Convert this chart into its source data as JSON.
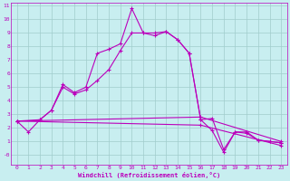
{
  "xlabel": "Windchill (Refroidissement éolien,°C)",
  "xlim": [
    -0.5,
    23.5
  ],
  "ylim": [
    -0.7,
    11.2
  ],
  "yticks": [
    0,
    1,
    2,
    3,
    4,
    5,
    6,
    7,
    8,
    9,
    10,
    11
  ],
  "ytick_labels": [
    "-0",
    "1",
    "2",
    "3",
    "4",
    "5",
    "6",
    "7",
    "8",
    "9",
    "10",
    "11"
  ],
  "xticks": [
    0,
    1,
    2,
    3,
    4,
    5,
    6,
    7,
    8,
    9,
    10,
    11,
    12,
    13,
    14,
    15,
    16,
    17,
    18,
    19,
    20,
    21,
    22,
    23
  ],
  "bg_color": "#c8eef0",
  "grid_color": "#a0cccc",
  "line_color": "#bb00bb",
  "series1_x": [
    0,
    1,
    2,
    3,
    4,
    5,
    6,
    7,
    8,
    9,
    10,
    11,
    12,
    13,
    14,
    15,
    16,
    17,
    18,
    19,
    20,
    21,
    22,
    23
  ],
  "series1_y": [
    2.5,
    1.7,
    2.6,
    3.3,
    5.2,
    4.6,
    5.0,
    7.5,
    7.8,
    8.2,
    10.8,
    9.0,
    8.8,
    9.1,
    8.5,
    7.5,
    2.6,
    2.7,
    0.4,
    1.7,
    1.7,
    1.1,
    1.0,
    0.9
  ],
  "series2_x": [
    0,
    2,
    3,
    4,
    5,
    6,
    7,
    8,
    9,
    10,
    11,
    12,
    13,
    14,
    15,
    16,
    17,
    18,
    19,
    20,
    21,
    22,
    23
  ],
  "series2_y": [
    2.5,
    2.6,
    3.3,
    5.0,
    4.5,
    4.8,
    5.5,
    6.3,
    7.7,
    9.0,
    9.0,
    9.0,
    9.1,
    8.5,
    7.5,
    2.6,
    1.8,
    0.2,
    1.7,
    1.6,
    1.1,
    1.0,
    0.9
  ],
  "series3_x": [
    0,
    16,
    23
  ],
  "series3_y": [
    2.5,
    2.8,
    1.0
  ],
  "series4_x": [
    0,
    16,
    23
  ],
  "series4_y": [
    2.5,
    2.2,
    0.7
  ]
}
